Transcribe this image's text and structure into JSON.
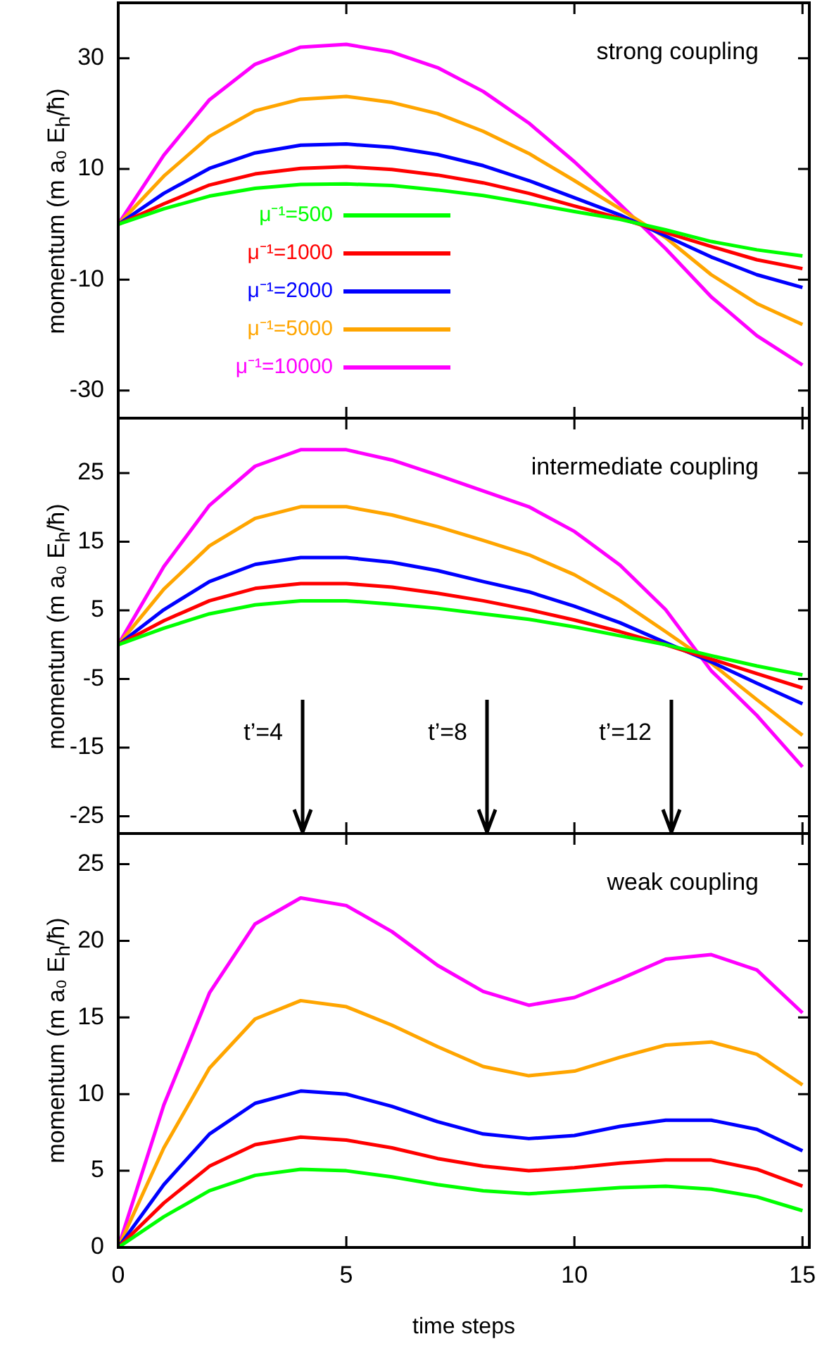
{
  "chart_data": [
    {
      "type": "line",
      "title": "strong coupling",
      "ylabel": "momentum (m a₀ E$_{h}$/ħ)",
      "xlim": [
        0,
        15.15
      ],
      "xticks": [
        0,
        5,
        10,
        15
      ],
      "ylim": [
        -35,
        40
      ],
      "yticks": [
        -30,
        -10,
        10,
        30
      ],
      "tick_labels": "y",
      "legend": "left",
      "x": [
        0,
        1,
        2,
        3,
        4,
        5,
        6,
        7,
        8,
        9,
        10,
        11,
        12,
        13,
        14,
        15
      ],
      "series": [
        {
          "name": "μ⁻¹=500",
          "color": "#00ff00",
          "values": [
            0,
            2.8,
            5.1,
            6.5,
            7.2,
            7.3,
            7,
            6.2,
            5.2,
            3.8,
            2.3,
            0.9,
            -1,
            -3.1,
            -4.6,
            -5.7
          ]
        },
        {
          "name": "μ⁻¹=1000",
          "color": "#ff0000",
          "values": [
            0,
            3.7,
            7.1,
            9.1,
            10.1,
            10.4,
            9.9,
            8.9,
            7.5,
            5.6,
            3.3,
            1.1,
            -1.5,
            -4,
            -6.4,
            -8
          ]
        },
        {
          "name": "μ⁻¹=2000",
          "color": "#0000ff",
          "values": [
            0,
            5.6,
            10.1,
            12.9,
            14.3,
            14.5,
            13.9,
            12.6,
            10.6,
            7.9,
            4.8,
            1.7,
            -2.1,
            -5.9,
            -9.1,
            -11.4
          ]
        },
        {
          "name": "μ⁻¹=5000",
          "color": "#ffa500",
          "values": [
            0,
            8.7,
            15.9,
            20.5,
            22.6,
            23.1,
            22,
            20,
            16.8,
            12.8,
            7.9,
            2.8,
            -2.4,
            -9.1,
            -14.3,
            -18.1
          ]
        },
        {
          "name": "μ⁻¹=10000",
          "color": "#ff00ff",
          "values": [
            0,
            12.5,
            22.5,
            28.9,
            32,
            32.5,
            31.1,
            28.3,
            24,
            18.3,
            11.3,
            3.6,
            -4.4,
            -13.1,
            -20.1,
            -25.4
          ]
        }
      ]
    },
    {
      "type": "line",
      "title": "intermediate coupling",
      "ylabel": "momentum (m a₀ E$_{h}$/ħ)",
      "xlim": [
        0,
        15.15
      ],
      "xticks": [
        0,
        5,
        10,
        15
      ],
      "ylim": [
        -27.5,
        33
      ],
      "yticks": [
        -25,
        -15,
        -5,
        5,
        15,
        25
      ],
      "tick_labels": "y",
      "x": [
        0,
        1,
        2,
        3,
        4,
        5,
        6,
        7,
        8,
        9,
        10,
        11,
        12,
        13,
        14,
        15
      ],
      "annotations": [
        "t’=4",
        "t’=8",
        "t’=12"
      ],
      "series": [
        {
          "color": "#00ff00",
          "values": [
            0,
            2.4,
            4.5,
            5.8,
            6.4,
            6.4,
            5.9,
            5.3,
            4.5,
            3.7,
            2.6,
            1.3,
            0,
            -1.6,
            -3.1,
            -4.4
          ]
        },
        {
          "color": "#ff0000",
          "values": [
            0,
            3.5,
            6.4,
            8.2,
            8.9,
            8.9,
            8.4,
            7.5,
            6.4,
            5.1,
            3.6,
            1.9,
            0,
            -2.1,
            -4.2,
            -6.3
          ]
        },
        {
          "color": "#0000ff",
          "values": [
            0,
            5.1,
            9.2,
            11.7,
            12.7,
            12.7,
            12,
            10.8,
            9.2,
            7.7,
            5.6,
            3.2,
            0.3,
            -2.5,
            -5.6,
            -8.6
          ]
        },
        {
          "color": "#ffa500",
          "values": [
            0,
            8.1,
            14.4,
            18.4,
            20.1,
            20.1,
            18.9,
            17.2,
            15.2,
            13.1,
            10.2,
            6.4,
            1.9,
            -2.7,
            -8,
            -13.2
          ]
        },
        {
          "color": "#ff00ff",
          "values": [
            0,
            11.4,
            20.3,
            26,
            28.4,
            28.4,
            26.9,
            24.7,
            22.4,
            20.1,
            16.5,
            11.6,
            5.1,
            -3.8,
            -10.3,
            -17.8
          ]
        }
      ]
    },
    {
      "type": "line",
      "title": "weak coupling",
      "xlabel": "time steps",
      "ylabel": "momentum (m a₀ E$_{h}$/ħ)",
      "xlim": [
        0,
        15.15
      ],
      "xticks": [
        0,
        5,
        10,
        15
      ],
      "ylim": [
        0,
        27
      ],
      "yticks": [
        0,
        5,
        10,
        15,
        20,
        25
      ],
      "x": [
        0,
        1,
        2,
        3,
        4,
        5,
        6,
        7,
        8,
        9,
        10,
        11,
        12,
        13,
        14,
        15
      ],
      "series": [
        {
          "color": "#00ff00",
          "values": [
            0,
            2,
            3.7,
            4.7,
            5.1,
            5,
            4.6,
            4.1,
            3.7,
            3.5,
            3.7,
            3.9,
            4,
            3.8,
            3.3,
            2.4
          ]
        },
        {
          "color": "#ff0000",
          "values": [
            0,
            2.9,
            5.3,
            6.7,
            7.2,
            7,
            6.5,
            5.8,
            5.3,
            5,
            5.2,
            5.5,
            5.7,
            5.7,
            5.1,
            4
          ]
        },
        {
          "color": "#0000ff",
          "values": [
            0,
            4.1,
            7.4,
            9.4,
            10.2,
            10,
            9.2,
            8.2,
            7.4,
            7.1,
            7.3,
            7.9,
            8.3,
            8.3,
            7.7,
            6.3
          ]
        },
        {
          "color": "#ffa500",
          "values": [
            0,
            6.5,
            11.7,
            14.9,
            16.1,
            15.7,
            14.5,
            13.1,
            11.8,
            11.2,
            11.5,
            12.4,
            13.2,
            13.4,
            12.6,
            10.6
          ]
        },
        {
          "color": "#ff00ff",
          "values": [
            0,
            9.3,
            16.6,
            21.1,
            22.8,
            22.3,
            20.6,
            18.4,
            16.7,
            15.8,
            16.3,
            17.5,
            18.8,
            19.1,
            18.1,
            15.3
          ]
        }
      ]
    }
  ]
}
